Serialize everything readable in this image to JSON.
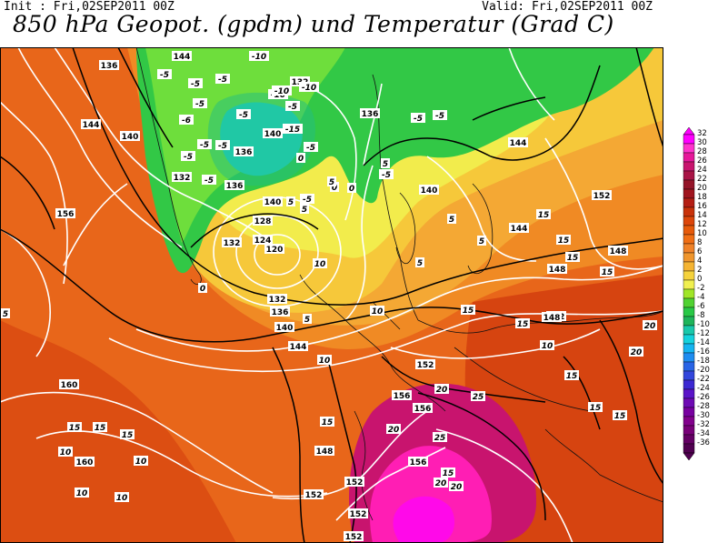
{
  "header": {
    "init": "Init : Fri,02SEP2011 00Z",
    "valid": "Valid: Fri,02SEP2011 00Z",
    "title": "850 hPa Geopot. (gpdm) und Temperatur (Grad C)"
  },
  "colorbar": {
    "labels": [
      "32",
      "30",
      "28",
      "26",
      "24",
      "22",
      "20",
      "18",
      "16",
      "14",
      "12",
      "10",
      "8",
      "6",
      "4",
      "2",
      "0",
      "-2",
      "-4",
      "-6",
      "-8",
      "-10",
      "-12",
      "-14",
      "-16",
      "-18",
      "-20",
      "-22",
      "-24",
      "-26",
      "-28",
      "-30",
      "-32",
      "-34",
      "-36"
    ],
    "colors": [
      "#ff00ff",
      "#ff33cc",
      "#e6189a",
      "#c8146e",
      "#a81446",
      "#941428",
      "#a0141e",
      "#b41e14",
      "#c8320a",
      "#dc460a",
      "#e65a0a",
      "#f06e14",
      "#f08228",
      "#f0962d",
      "#f5b432",
      "#f5d23c",
      "#f0f050",
      "#a0e628",
      "#50d232",
      "#28c846",
      "#1eb45a",
      "#19c8aa",
      "#14d2dc",
      "#14b4f0",
      "#1e8cf0",
      "#2864e6",
      "#3246dc",
      "#3c28d2",
      "#5a14c8",
      "#6e0ab4",
      "#7800a0",
      "#82008c",
      "#780078",
      "#640064",
      "#500050"
    ]
  },
  "map": {
    "geopotential_labels": [
      "136",
      "144",
      "140",
      "132",
      "140",
      "136",
      "132",
      "136",
      "140",
      "136",
      "132",
      "128",
      "124",
      "120",
      "132",
      "136",
      "140",
      "144",
      "156",
      "152",
      "148",
      "144",
      "148",
      "152",
      "148",
      "152",
      "160",
      "160",
      "152",
      "148",
      "156",
      "156",
      "152",
      "152",
      "152",
      "156",
      "144",
      "140",
      "144"
    ],
    "temperature_labels": [
      "-5",
      "-5",
      "-5",
      "-10",
      "-5",
      "-10",
      "-10",
      "-5",
      "-5",
      "-6",
      "-10",
      "-15",
      "-5",
      "-5",
      "-5",
      "-5",
      "-5",
      "-5",
      "-5",
      "-5",
      "-5",
      "0",
      "0",
      "0",
      "5",
      "5",
      "5",
      "5",
      "10",
      "10",
      "15",
      "15",
      "15",
      "10",
      "15",
      "15",
      "15",
      "10",
      "15",
      "20",
      "20",
      "25",
      "25",
      "20",
      "20",
      "15",
      "15",
      "15",
      "15",
      "20",
      "20",
      "15",
      "15",
      "15",
      "5",
      "10",
      "10",
      "10",
      "10",
      "0",
      "5",
      "5",
      "5",
      "5"
    ]
  }
}
